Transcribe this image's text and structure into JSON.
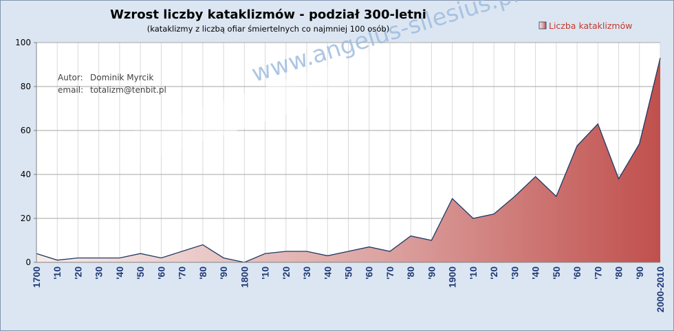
{
  "chart_data": {
    "type": "area",
    "title": "Wzrost liczby kataklizmów - podział 300-letni",
    "subtitle": "(kataklizmy z liczbą ofiar śmiertelnych co najmniej 100 osób)",
    "legend": {
      "label": "Liczba kataklizmów",
      "position": "top-right"
    },
    "ylim": [
      0,
      100
    ],
    "yticks": [
      0,
      20,
      40,
      60,
      80,
      100
    ],
    "grid": true,
    "categories": [
      "1700",
      "'10",
      "'20",
      "'30",
      "'40",
      "'50",
      "'60",
      "'70",
      "'80",
      "'90",
      "1800",
      "'10",
      "'20",
      "'30",
      "'40",
      "'50",
      "'60",
      "'70",
      "'80",
      "'90",
      "1900",
      "'10",
      "'20",
      "'30",
      "'40",
      "'50",
      "'60",
      "'70",
      "'80",
      "'90",
      "2000-2010"
    ],
    "series": [
      {
        "name": "Liczba kataklizmów",
        "values": [
          4,
          1,
          2,
          2,
          2,
          4,
          2,
          5,
          8,
          2,
          0,
          4,
          5,
          5,
          3,
          5,
          7,
          5,
          12,
          10,
          29,
          20,
          22,
          30,
          39,
          30,
          53,
          63,
          38,
          54,
          93
        ]
      }
    ],
    "colors": {
      "area_light": "#f7ecea",
      "area_dark": "#c0504d",
      "line": "#1f3864"
    }
  },
  "annotations": {
    "author_label": "Autor:",
    "author_name": "Dominik Myrcik",
    "email_label": "email:",
    "email_value": "totalizm@tenbit.pl"
  },
  "watermark": "www.angelus-silesius.pl"
}
